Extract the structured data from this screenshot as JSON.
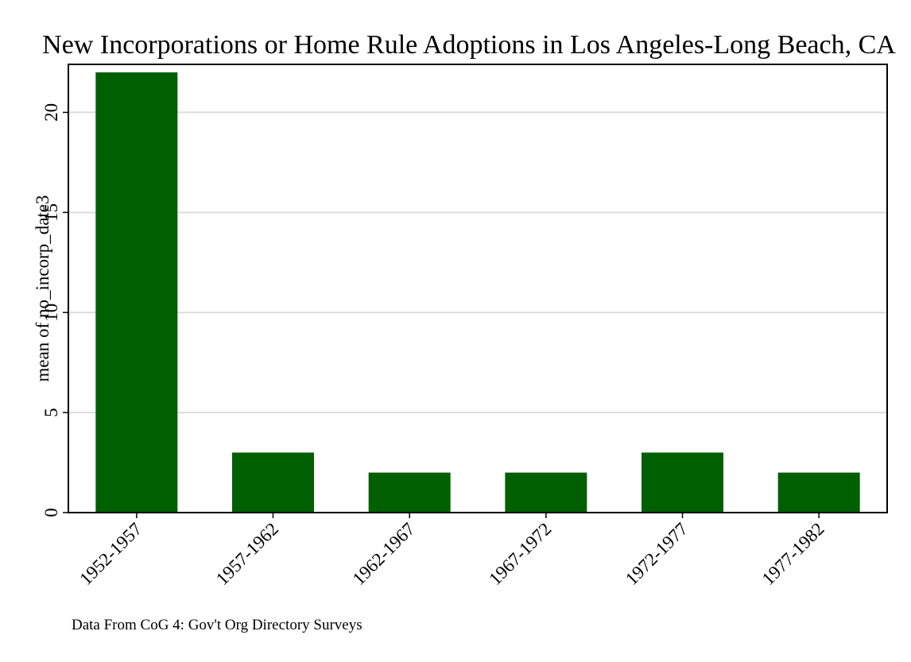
{
  "chart_data": {
    "type": "bar",
    "title": "New Incorporations or Home Rule Adoptions in Los Angeles-Long Beach, CA",
    "xlabel": "",
    "ylabel": "mean of no_incorp_date3",
    "categories": [
      "1952-1957",
      "1957-1962",
      "1962-1967",
      "1967-1972",
      "1972-1977",
      "1977-1982"
    ],
    "values": [
      22,
      3,
      2,
      2,
      3,
      2
    ],
    "ylim": [
      0,
      22.4
    ],
    "yticks": [
      0,
      5,
      10,
      15,
      20
    ],
    "grid": true,
    "note": "Data From CoG 4: Gov't Org Directory Surveys",
    "colors": {
      "bar": "#005f00",
      "grid": "#dcdcdc",
      "axis": "#000000"
    }
  }
}
